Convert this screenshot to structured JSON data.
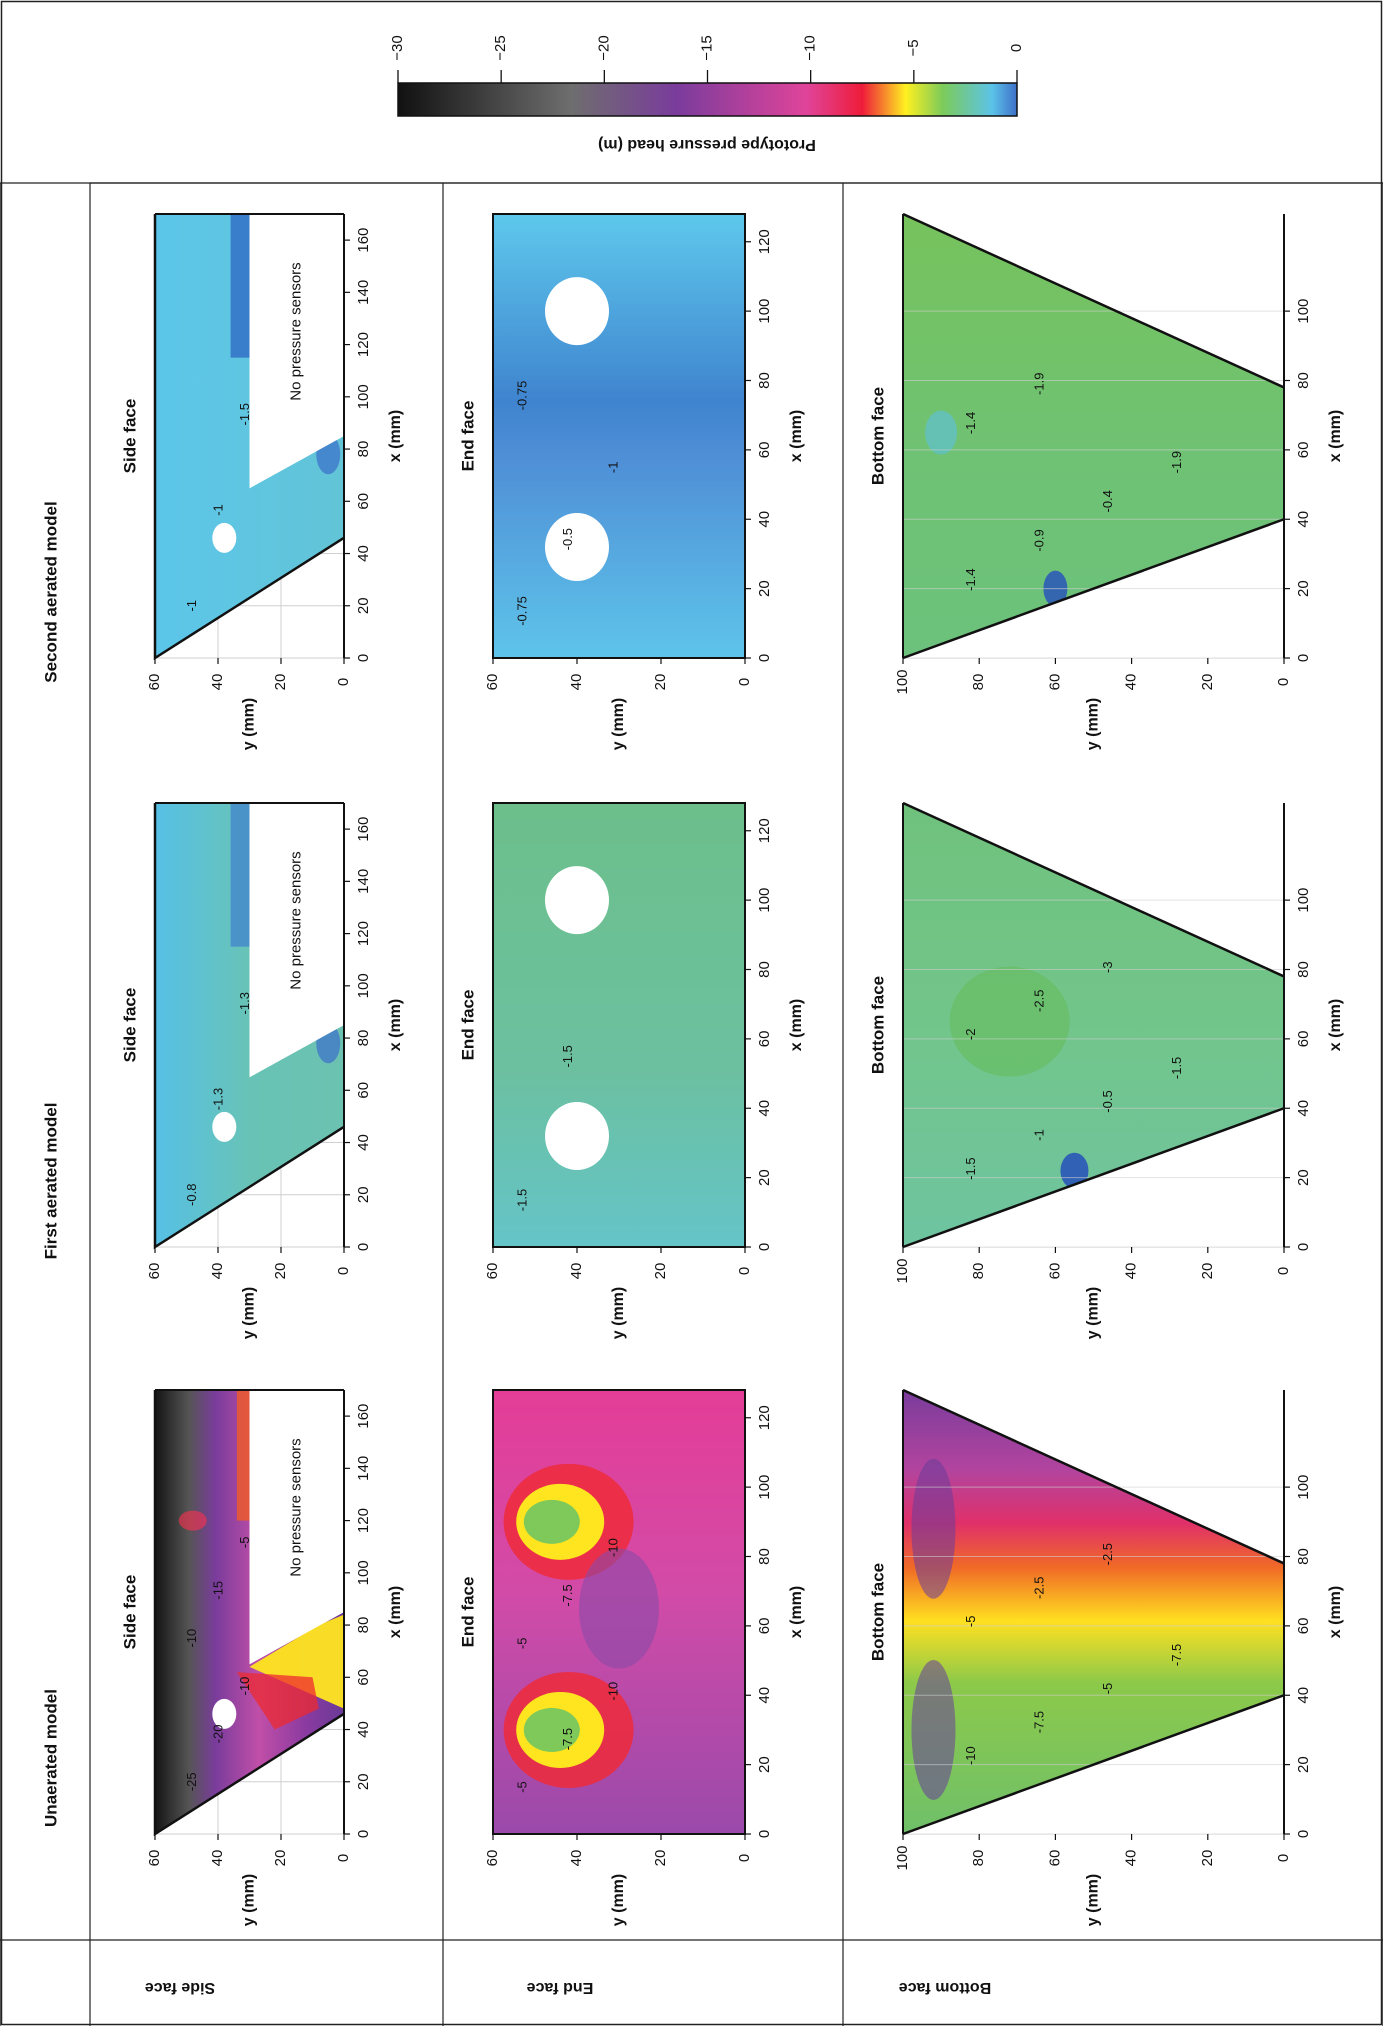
{
  "chart_data": {
    "type": "heatmap",
    "colorbar": {
      "label": "Prototype pressure head (m)",
      "ticks": [
        "0",
        "−5",
        "−10",
        "−15",
        "−20",
        "−25",
        "−30"
      ],
      "range": [
        0,
        -30
      ],
      "colors": [
        "#3f6fc9",
        "#5bc3e8",
        "#7ccb5a",
        "#fff020",
        "#ee1c3a",
        "#e0449a",
        "#7a3c9c",
        "#6e6e6e",
        "#111111"
      ]
    },
    "row_labels": [
      "Side face",
      "End face",
      "Bottom face"
    ],
    "columns": [
      {
        "title": "Unaerated model",
        "panels": [
          {
            "face": "side",
            "title": "Side face",
            "xlabel": "x (mm)",
            "ylabel": "y (mm)",
            "xlim": [
              0,
              170
            ],
            "ylim": [
              0,
              60
            ],
            "note": "No pressure sensors",
            "contour_labels": [
              "-25",
              "-20",
              "-10",
              "-10",
              "-15",
              "-5"
            ],
            "approx_range_m": [
              -30,
              -5
            ]
          },
          {
            "face": "end",
            "title": "End face",
            "xlabel": "x (mm)",
            "ylabel": "y (mm)",
            "xlim": [
              0,
              128
            ],
            "ylim": [
              0,
              60
            ],
            "contour_labels": [
              "-5",
              "-7.5",
              "-10",
              "-5",
              "-7.5",
              "-10"
            ],
            "approx_range_m": [
              -12,
              -2
            ]
          },
          {
            "face": "bottom",
            "title": "Bottom face",
            "xlabel": "x (mm)",
            "ylabel": "y (mm)",
            "xlim": [
              0,
              128
            ],
            "ylim": [
              0,
              100
            ],
            "contour_labels": [
              "-10",
              "-7.5",
              "-5",
              "-7.5",
              "-5",
              "-2.5",
              "-2.5"
            ],
            "approx_range_m": [
              -14,
              -2
            ]
          }
        ]
      },
      {
        "title": "First aerated model",
        "panels": [
          {
            "face": "side",
            "title": "Side face",
            "xlabel": "x (mm)",
            "ylabel": "y (mm)",
            "xlim": [
              0,
              170
            ],
            "ylim": [
              0,
              60
            ],
            "note": "No pressure sensors",
            "contour_labels": [
              "-0.8",
              "-1.3",
              "-1.3"
            ],
            "approx_range_m": [
              -1.5,
              -0.5
            ]
          },
          {
            "face": "end",
            "title": "End face",
            "xlabel": "x (mm)",
            "ylabel": "y (mm)",
            "xlim": [
              0,
              128
            ],
            "ylim": [
              0,
              60
            ],
            "contour_labels": [
              "-1.5",
              "-1.5"
            ],
            "approx_range_m": [
              -2,
              -1
            ]
          },
          {
            "face": "bottom",
            "title": "Bottom face",
            "xlabel": "x (mm)",
            "ylabel": "y (mm)",
            "xlim": [
              0,
              128
            ],
            "ylim": [
              0,
              100
            ],
            "contour_labels": [
              "-1.5",
              "-1",
              "-0.5",
              "-1.5",
              "-2",
              "-2.5",
              "-3"
            ],
            "approx_range_m": [
              -3,
              -0.5
            ]
          }
        ]
      },
      {
        "title": "Second aerated model",
        "panels": [
          {
            "face": "side",
            "title": "Side face",
            "xlabel": "x (mm)",
            "ylabel": "y (mm)",
            "xlim": [
              0,
              170
            ],
            "ylim": [
              0,
              60
            ],
            "note": "No pressure sensors",
            "contour_labels": [
              "-1",
              "-1",
              "-1.5"
            ],
            "approx_range_m": [
              -1.5,
              -0.3
            ]
          },
          {
            "face": "end",
            "title": "End face",
            "xlabel": "x (mm)",
            "ylabel": "y (mm)",
            "xlim": [
              0,
              128
            ],
            "ylim": [
              0,
              60
            ],
            "contour_labels": [
              "-0.75",
              "-0.5",
              "-1",
              "-0.75"
            ],
            "approx_range_m": [
              -1,
              -0.3
            ]
          },
          {
            "face": "bottom",
            "title": "Bottom face",
            "xlabel": "x (mm)",
            "ylabel": "y (mm)",
            "xlim": [
              0,
              128
            ],
            "ylim": [
              0,
              100
            ],
            "contour_labels": [
              "-1.4",
              "-0.9",
              "-0.4",
              "-1.9",
              "-1.4",
              "-1.9"
            ],
            "approx_range_m": [
              -2,
              -0.4
            ]
          }
        ]
      }
    ]
  },
  "ticks": {
    "side_x": [
      "0",
      "20",
      "40",
      "60",
      "80",
      "100",
      "120",
      "140",
      "160"
    ],
    "side_y": [
      "0",
      "20",
      "40",
      "60"
    ],
    "end_x": [
      "0",
      "20",
      "40",
      "60",
      "80",
      "100",
      "120"
    ],
    "end_y": [
      "0",
      "20",
      "40",
      "60"
    ],
    "bottom_x": [
      "0",
      "20",
      "40",
      "60",
      "80",
      "100"
    ],
    "bottom_y": [
      "0",
      "20",
      "40",
      "60",
      "80",
      "100"
    ]
  }
}
